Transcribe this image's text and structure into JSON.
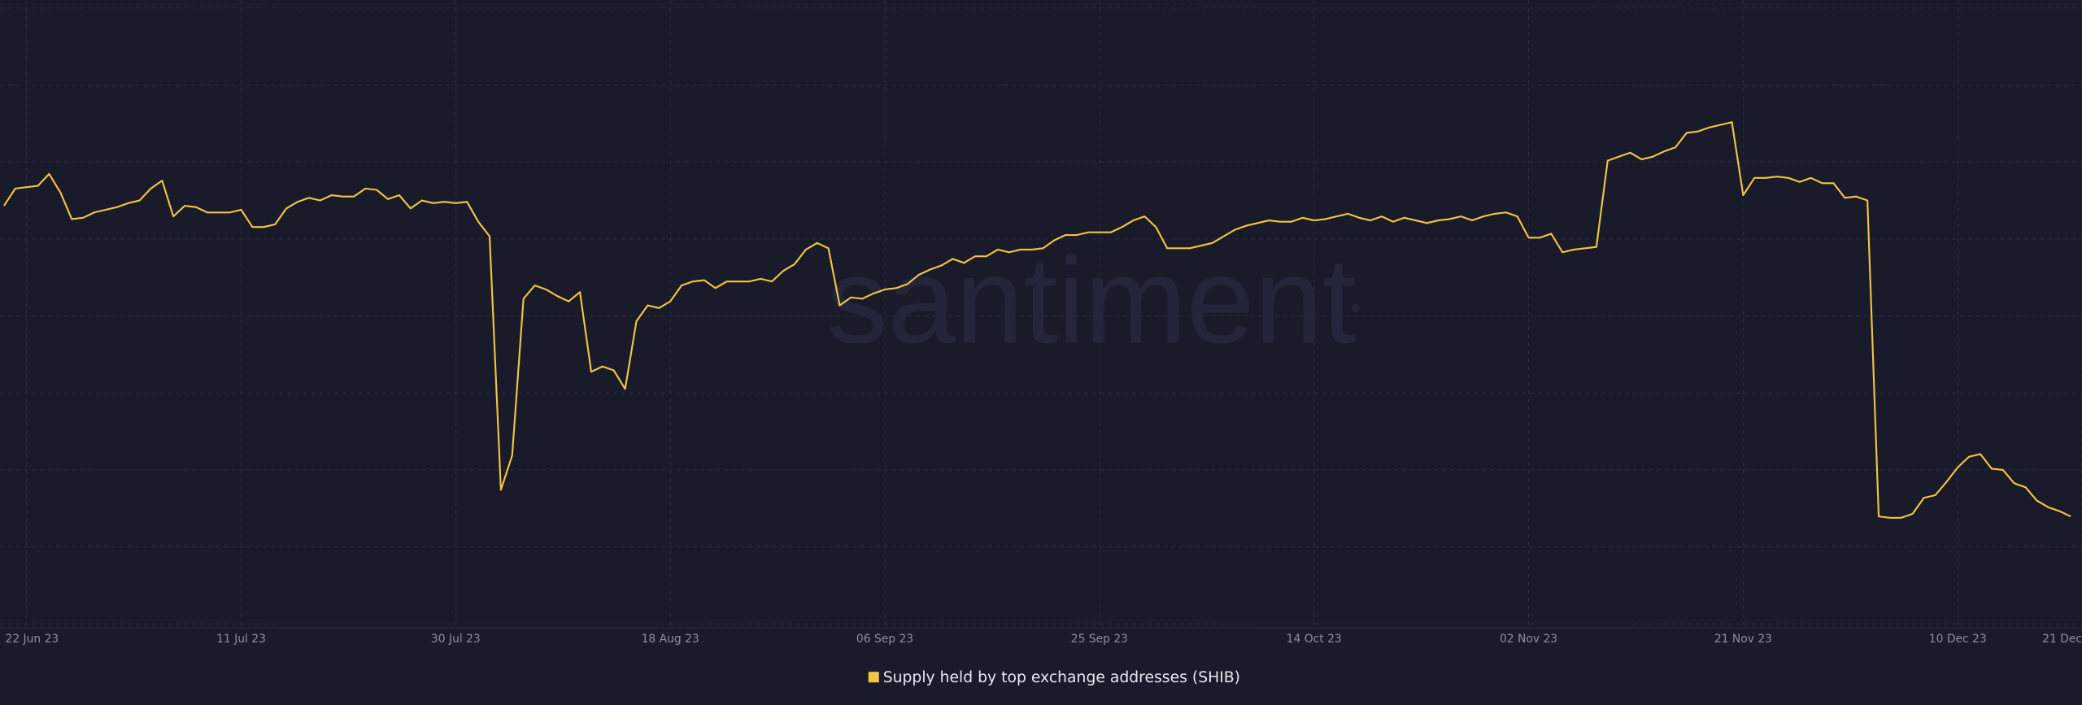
{
  "chart_data": {
    "type": "line",
    "watermark": "santiment",
    "x": [
      "2023-06-20",
      "2023-06-21",
      "2023-06-22",
      "2023-06-23",
      "2023-06-24",
      "2023-06-25",
      "2023-06-26",
      "2023-06-27",
      "2023-06-28",
      "2023-06-29",
      "2023-06-30",
      "2023-07-01",
      "2023-07-02",
      "2023-07-03",
      "2023-07-04",
      "2023-07-05",
      "2023-07-06",
      "2023-07-07",
      "2023-07-08",
      "2023-07-09",
      "2023-07-10",
      "2023-07-11",
      "2023-07-12",
      "2023-07-13",
      "2023-07-14",
      "2023-07-15",
      "2023-07-16",
      "2023-07-17",
      "2023-07-18",
      "2023-07-19",
      "2023-07-20",
      "2023-07-21",
      "2023-07-22",
      "2023-07-23",
      "2023-07-24",
      "2023-07-25",
      "2023-07-26",
      "2023-07-27",
      "2023-07-28",
      "2023-07-29",
      "2023-07-30",
      "2023-07-31",
      "2023-08-01",
      "2023-08-02",
      "2023-08-03",
      "2023-08-04",
      "2023-08-05",
      "2023-08-06",
      "2023-08-07",
      "2023-08-08",
      "2023-08-09",
      "2023-08-10",
      "2023-08-11",
      "2023-08-12",
      "2023-08-13",
      "2023-08-14",
      "2023-08-15",
      "2023-08-16",
      "2023-08-17",
      "2023-08-18",
      "2023-08-19",
      "2023-08-20",
      "2023-08-21",
      "2023-08-22",
      "2023-08-23",
      "2023-08-24",
      "2023-08-25",
      "2023-08-26",
      "2023-08-27",
      "2023-08-28",
      "2023-08-29",
      "2023-08-30",
      "2023-08-31",
      "2023-09-01",
      "2023-09-02",
      "2023-09-03",
      "2023-09-04",
      "2023-09-05",
      "2023-09-06",
      "2023-09-07",
      "2023-09-08",
      "2023-09-09",
      "2023-09-10",
      "2023-09-11",
      "2023-09-12",
      "2023-09-13",
      "2023-09-14",
      "2023-09-15",
      "2023-09-16",
      "2023-09-17",
      "2023-09-18",
      "2023-09-19",
      "2023-09-20",
      "2023-09-21",
      "2023-09-22",
      "2023-09-23",
      "2023-09-24",
      "2023-09-25",
      "2023-09-26",
      "2023-09-27",
      "2023-09-28",
      "2023-09-29",
      "2023-09-30",
      "2023-10-01",
      "2023-10-02",
      "2023-10-03",
      "2023-10-04",
      "2023-10-05",
      "2023-10-06",
      "2023-10-07",
      "2023-10-08",
      "2023-10-09",
      "2023-10-10",
      "2023-10-11",
      "2023-10-12",
      "2023-10-13",
      "2023-10-14",
      "2023-10-15",
      "2023-10-16",
      "2023-10-17",
      "2023-10-18",
      "2023-10-19",
      "2023-10-20",
      "2023-10-21",
      "2023-10-22",
      "2023-10-23",
      "2023-10-24",
      "2023-10-25",
      "2023-10-26",
      "2023-10-27",
      "2023-10-28",
      "2023-10-29",
      "2023-10-30",
      "2023-10-31",
      "2023-11-01",
      "2023-11-02",
      "2023-11-03",
      "2023-11-04",
      "2023-11-05",
      "2023-11-06",
      "2023-11-07",
      "2023-11-08",
      "2023-11-09",
      "2023-11-10",
      "2023-11-11",
      "2023-11-12",
      "2023-11-13",
      "2023-11-14",
      "2023-11-15",
      "2023-11-16",
      "2023-11-17",
      "2023-11-18",
      "2023-11-19",
      "2023-11-20",
      "2023-11-21",
      "2023-11-22",
      "2023-11-23",
      "2023-11-24",
      "2023-11-25",
      "2023-11-26",
      "2023-11-27",
      "2023-11-28",
      "2023-11-29",
      "2023-11-30",
      "2023-12-01",
      "2023-12-02",
      "2023-12-03",
      "2023-12-04",
      "2023-12-05",
      "2023-12-06",
      "2023-12-07",
      "2023-12-08",
      "2023-12-09",
      "2023-12-10",
      "2023-12-11",
      "2023-12-12",
      "2023-12-13",
      "2023-12-14",
      "2023-12-15",
      "2023-12-16",
      "2023-12-17",
      "2023-12-18",
      "2023-12-19",
      "2023-12-20"
    ],
    "series": [
      {
        "name": "Supply held by top exchange addresses (SHIB)",
        "color": "#f3c545",
        "values": [
          318,
          331,
          332,
          333,
          342,
          328,
          308,
          309,
          313,
          315,
          317,
          320,
          322,
          331,
          337,
          310,
          318,
          317,
          313,
          313,
          313,
          315,
          302,
          302,
          304,
          316,
          321,
          324,
          322,
          326,
          325,
          325,
          331,
          330,
          323,
          326,
          316,
          322,
          320,
          321,
          320,
          321,
          306,
          295,
          104,
          130,
          248,
          258,
          255,
          250,
          246,
          253,
          193,
          197,
          194,
          180,
          231,
          243,
          241,
          246,
          258,
          261,
          262,
          256,
          261,
          261,
          261,
          263,
          261,
          269,
          274,
          285,
          290,
          286,
          243,
          249,
          248,
          252,
          255,
          256,
          259,
          266,
          270,
          273,
          278,
          275,
          280,
          280,
          285,
          283,
          285,
          285,
          286,
          292,
          296,
          296,
          298,
          298,
          298,
          302,
          307,
          310,
          302,
          286,
          286,
          286,
          288,
          290,
          295,
          300,
          303,
          305,
          307,
          306,
          306,
          309,
          307,
          308,
          310,
          312,
          309,
          307,
          310,
          306,
          309,
          307,
          305,
          307,
          308,
          310,
          307,
          310,
          312,
          313,
          310,
          294,
          294,
          297,
          283,
          285,
          286,
          287,
          352,
          355,
          358,
          353,
          355,
          359,
          362,
          373,
          374,
          377,
          379,
          381,
          326,
          339,
          339,
          340,
          339,
          336,
          339,
          335,
          335,
          324,
          325,
          322,
          84,
          83,
          83,
          86,
          98,
          100,
          110,
          121,
          129,
          131,
          120,
          119,
          109,
          106,
          96,
          91,
          88,
          84
        ]
      }
    ],
    "xlim": [
      "2023-06-20",
      "2023-12-21"
    ],
    "xticks": [
      {
        "value": "2023-06-22",
        "label": "22 Jun 23"
      },
      {
        "value": "2023-07-11",
        "label": "11 Jul 23"
      },
      {
        "value": "2023-07-30",
        "label": "30 Jul 23"
      },
      {
        "value": "2023-08-18",
        "label": "18 Aug 23"
      },
      {
        "value": "2023-09-06",
        "label": "06 Sep 23"
      },
      {
        "value": "2023-09-25",
        "label": "25 Sep 23"
      },
      {
        "value": "2023-10-14",
        "label": "14 Oct 23"
      },
      {
        "value": "2023-11-02",
        "label": "02 Nov 23"
      },
      {
        "value": "2023-11-21",
        "label": "21 Nov 23"
      },
      {
        "value": "2023-12-10",
        "label": "10 Dec 23"
      },
      {
        "value": "2023-12-21",
        "label": "21 Dec"
      }
    ],
    "ylim": [
      0,
      473
    ],
    "grid": true
  }
}
